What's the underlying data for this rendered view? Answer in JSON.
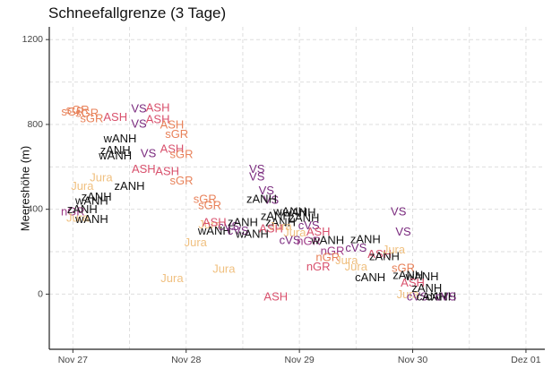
{
  "chart_data": {
    "type": "scatter",
    "title": "Schneefallgrenze (3 Tage)",
    "xlabel": "",
    "ylabel": "Meereshöhe (m)",
    "x_unit": "date",
    "xlim": [
      "2019-11-26 19:00",
      "2019-12-01 04:00"
    ],
    "ylim": [
      -260,
      1260
    ],
    "x_ticks": [
      {
        "x": "2019-11-27 00:00",
        "label": "Nov 27"
      },
      {
        "x": "2019-11-28 00:00",
        "label": "Nov 28"
      },
      {
        "x": "2019-11-29 00:00",
        "label": "Nov 29"
      },
      {
        "x": "2019-11-30 00:00",
        "label": "Nov 30"
      },
      {
        "x": "2019-12-01 00:00",
        "label": "Dez 01"
      }
    ],
    "y_ticks": [
      0,
      400,
      800,
      1200
    ],
    "grid": true,
    "points": [
      {
        "x": "2019-11-27 00:00",
        "y": 860,
        "label": "sGR",
        "color": "#e8825a"
      },
      {
        "x": "2019-11-27 01:00",
        "y": 870,
        "label": "sGR",
        "color": "#e8825a"
      },
      {
        "x": "2019-11-27 03:00",
        "y": 855,
        "label": "sGR",
        "color": "#e8825a"
      },
      {
        "x": "2019-11-27 04:00",
        "y": 830,
        "label": "sGR",
        "color": "#e8825a"
      },
      {
        "x": "2019-11-27 09:00",
        "y": 835,
        "label": "ASH",
        "color": "#d8506c"
      },
      {
        "x": "2019-11-27 14:00",
        "y": 875,
        "label": "VS",
        "color": "#7a2a7e"
      },
      {
        "x": "2019-11-27 18:00",
        "y": 880,
        "label": "ASH",
        "color": "#d8506c"
      },
      {
        "x": "2019-11-27 14:00",
        "y": 805,
        "label": "VS",
        "color": "#7a2a7e"
      },
      {
        "x": "2019-11-27 18:00",
        "y": 825,
        "label": "ASH",
        "color": "#d8506c"
      },
      {
        "x": "2019-11-27 21:00",
        "y": 800,
        "label": "ASH",
        "color": "#e8825a"
      },
      {
        "x": "2019-11-27 22:00",
        "y": 755,
        "label": "sGR",
        "color": "#e8825a"
      },
      {
        "x": "2019-11-27 10:00",
        "y": 735,
        "label": "wANH",
        "color": "#111111"
      },
      {
        "x": "2019-11-27 09:00",
        "y": 680,
        "label": "zANH",
        "color": "#111111"
      },
      {
        "x": "2019-11-27 09:00",
        "y": 655,
        "label": "wANH",
        "color": "#111111"
      },
      {
        "x": "2019-11-27 16:00",
        "y": 665,
        "label": "VS",
        "color": "#7a2a7e"
      },
      {
        "x": "2019-11-27 21:00",
        "y": 685,
        "label": "ASH",
        "color": "#d8506c"
      },
      {
        "x": "2019-11-27 23:00",
        "y": 660,
        "label": "sGR",
        "color": "#e8825a"
      },
      {
        "x": "2019-11-27 20:00",
        "y": 580,
        "label": "ASH",
        "color": "#d8506c"
      },
      {
        "x": "2019-11-27 23:00",
        "y": 535,
        "label": "sGR",
        "color": "#e8825a"
      },
      {
        "x": "2019-11-27 06:00",
        "y": 550,
        "label": "Jura",
        "color": "#f0c080"
      },
      {
        "x": "2019-11-27 02:00",
        "y": 510,
        "label": "Jura",
        "color": "#f0c080"
      },
      {
        "x": "2019-11-27 05:00",
        "y": 460,
        "label": "zANH",
        "color": "#111111"
      },
      {
        "x": "2019-11-27 04:00",
        "y": 440,
        "label": "wANH",
        "color": "#111111"
      },
      {
        "x": "2019-11-27 00:00",
        "y": 390,
        "label": "nGR",
        "color": "#9e3a86"
      },
      {
        "x": "2019-11-27 02:00",
        "y": 400,
        "label": "zANH",
        "color": "#111111"
      },
      {
        "x": "2019-11-27 01:00",
        "y": 360,
        "label": "Jura",
        "color": "#f0c080"
      },
      {
        "x": "2019-11-27 04:00",
        "y": 355,
        "label": "wANH",
        "color": "#111111"
      },
      {
        "x": "2019-11-27 12:00",
        "y": 510,
        "label": "zANH",
        "color": "#111111"
      },
      {
        "x": "2019-11-27 15:00",
        "y": 590,
        "label": "ASH",
        "color": "#d8506c"
      },
      {
        "x": "2019-11-28 05:00",
        "y": 420,
        "label": "sGR",
        "color": "#e8825a"
      },
      {
        "x": "2019-11-28 04:00",
        "y": 450,
        "label": "sGR",
        "color": "#e8825a"
      },
      {
        "x": "2019-11-28 05:00",
        "y": 330,
        "label": "Jura",
        "color": "#f0c080"
      },
      {
        "x": "2019-11-28 02:00",
        "y": 245,
        "label": "Jura",
        "color": "#f0c080"
      },
      {
        "x": "2019-11-27 21:00",
        "y": 75,
        "label": "Jura",
        "color": "#f0c080"
      },
      {
        "x": "2019-11-28 06:00",
        "y": 300,
        "label": "wANH",
        "color": "#111111"
      },
      {
        "x": "2019-11-28 09:00",
        "y": 320,
        "label": "cVS",
        "color": "#7a2a7e"
      },
      {
        "x": "2019-11-28 06:00",
        "y": 340,
        "label": "ASH",
        "color": "#d8506c"
      },
      {
        "x": "2019-11-28 12:00",
        "y": 340,
        "label": "zANH",
        "color": "#111111"
      },
      {
        "x": "2019-11-28 11:00",
        "y": 300,
        "label": "cVS",
        "color": "#7a2a7e"
      },
      {
        "x": "2019-11-28 14:00",
        "y": 285,
        "label": "wANH",
        "color": "#111111"
      },
      {
        "x": "2019-11-28 08:00",
        "y": 120,
        "label": "Jura",
        "color": "#f0c080"
      },
      {
        "x": "2019-11-28 15:00",
        "y": 590,
        "label": "VS",
        "color": "#7a2a7e"
      },
      {
        "x": "2019-11-28 15:00",
        "y": 555,
        "label": "VS",
        "color": "#7a2a7e"
      },
      {
        "x": "2019-11-28 17:00",
        "y": 490,
        "label": "VS",
        "color": "#7a2a7e"
      },
      {
        "x": "2019-11-28 18:00",
        "y": 445,
        "label": "VS",
        "color": "#7a2a7e"
      },
      {
        "x": "2019-11-28 16:00",
        "y": 450,
        "label": "zANH",
        "color": "#111111"
      },
      {
        "x": "2019-11-28 19:00",
        "y": 370,
        "label": "zANH",
        "color": "#111111"
      },
      {
        "x": "2019-11-28 20:00",
        "y": 340,
        "label": "zANH",
        "color": "#111111"
      },
      {
        "x": "2019-11-28 20:00",
        "y": 320,
        "label": "Jura",
        "color": "#f0c080"
      },
      {
        "x": "2019-11-28 18:00",
        "y": 310,
        "label": "ASH",
        "color": "#d8506c"
      },
      {
        "x": "2019-11-28 22:00",
        "y": 390,
        "label": "wANH",
        "color": "#111111"
      },
      {
        "x": "2019-11-29 00:00",
        "y": 385,
        "label": "wANH",
        "color": "#111111"
      },
      {
        "x": "2019-11-29 01:00",
        "y": 360,
        "label": "zANH",
        "color": "#111111"
      },
      {
        "x": "2019-11-29 02:00",
        "y": 325,
        "label": "cVS",
        "color": "#7a2a7e"
      },
      {
        "x": "2019-11-28 23:00",
        "y": 290,
        "label": "Jura",
        "color": "#f0c080"
      },
      {
        "x": "2019-11-28 22:00",
        "y": 255,
        "label": "cVS",
        "color": "#7a2a7e"
      },
      {
        "x": "2019-11-29 02:00",
        "y": 250,
        "label": "nGR",
        "color": "#9e3a86"
      },
      {
        "x": "2019-11-29 04:00",
        "y": 295,
        "label": "ASH",
        "color": "#d8506c"
      },
      {
        "x": "2019-11-29 06:00",
        "y": 255,
        "label": "wANH",
        "color": "#111111"
      },
      {
        "x": "2019-11-29 07:00",
        "y": 205,
        "label": "nGR",
        "color": "#9e3a86"
      },
      {
        "x": "2019-11-29 06:00",
        "y": 175,
        "label": "nGR",
        "color": "#e8825a"
      },
      {
        "x": "2019-11-29 04:00",
        "y": 130,
        "label": "nGR",
        "color": "#d8506c"
      },
      {
        "x": "2019-11-29 10:00",
        "y": 160,
        "label": "Jura",
        "color": "#f0c080"
      },
      {
        "x": "2019-11-29 12:00",
        "y": 220,
        "label": "cVS",
        "color": "#7a2a7e"
      },
      {
        "x": "2019-11-29 14:00",
        "y": 260,
        "label": "zANH",
        "color": "#111111"
      },
      {
        "x": "2019-11-29 12:00",
        "y": 130,
        "label": "Jura",
        "color": "#f0c080"
      },
      {
        "x": "2019-11-29 17:00",
        "y": 190,
        "label": "ASH",
        "color": "#d8506c"
      },
      {
        "x": "2019-11-29 15:00",
        "y": 80,
        "label": "cANH",
        "color": "#111111"
      },
      {
        "x": "2019-11-29 18:00",
        "y": 180,
        "label": "zANH",
        "color": "#111111"
      },
      {
        "x": "2019-11-29 21:00",
        "y": 390,
        "label": "VS",
        "color": "#7a2a7e"
      },
      {
        "x": "2019-11-29 22:00",
        "y": 295,
        "label": "VS",
        "color": "#7a2a7e"
      },
      {
        "x": "2019-11-29 20:00",
        "y": 210,
        "label": "Jura",
        "color": "#f0c080"
      },
      {
        "x": "2019-11-29 22:00",
        "y": 125,
        "label": "sGR",
        "color": "#e8825a"
      },
      {
        "x": "2019-11-29 23:00",
        "y": 90,
        "label": "zANH",
        "color": "#111111"
      },
      {
        "x": "2019-11-30 02:00",
        "y": 85,
        "label": "wANH",
        "color": "#111111"
      },
      {
        "x": "2019-11-30 00:00",
        "y": 55,
        "label": "ASH",
        "color": "#d8506c"
      },
      {
        "x": "2019-11-30 03:00",
        "y": 30,
        "label": "zANH",
        "color": "#111111"
      },
      {
        "x": "2019-11-29 23:00",
        "y": 0,
        "label": "Jura",
        "color": "#f0c080"
      },
      {
        "x": "2019-11-30 01:00",
        "y": -10,
        "label": "cVS",
        "color": "#7a2a7e"
      },
      {
        "x": "2019-11-30 04:00",
        "y": -10,
        "label": "cANH",
        "color": "#111111"
      },
      {
        "x": "2019-11-30 06:00",
        "y": -10,
        "label": "cANH",
        "color": "#111111"
      },
      {
        "x": "2019-11-30 07:00",
        "y": -10,
        "label": "cVS",
        "color": "#7a2a7e"
      },
      {
        "x": "2019-11-28 19:00",
        "y": -10,
        "label": "ASH",
        "color": "#d8506c"
      }
    ]
  }
}
